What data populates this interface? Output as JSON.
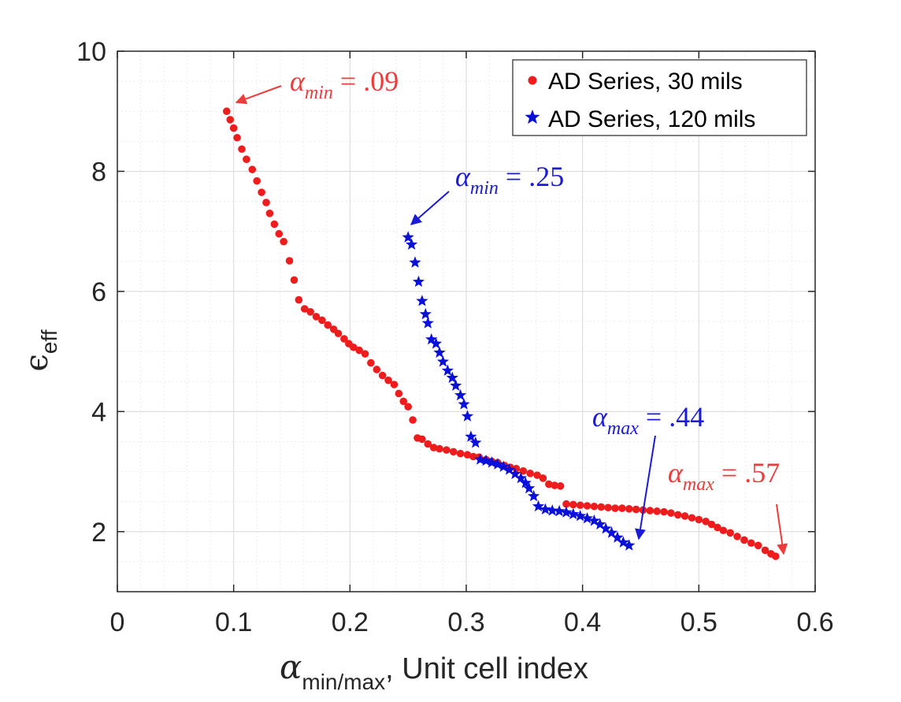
{
  "chart_data": {
    "type": "scatter",
    "title": "",
    "xlabel_symbol": "α",
    "xlabel_sub": "min/max",
    "xlabel_rest": ", Unit cell index",
    "ylabel_symbol": "ϵ",
    "ylabel_sub": "eff",
    "xlim": [
      0,
      0.6
    ],
    "ylim": [
      1,
      10
    ],
    "xticks": [
      0,
      0.1,
      0.2,
      0.3,
      0.4,
      0.5,
      0.6
    ],
    "xtick_labels": [
      "0",
      "0.1",
      "0.2",
      "0.3",
      "0.4",
      "0.5",
      "0.6"
    ],
    "yticks": [
      2,
      4,
      6,
      8,
      10
    ],
    "ytick_labels": [
      "2",
      "4",
      "6",
      "8",
      "10"
    ],
    "grid": true,
    "minor_grid": true,
    "legend_position": "top-right",
    "colors": {
      "red": "#ee1c1c",
      "blue": "#0a10d8",
      "annot_red": "#ee3c3c",
      "annot_blue": "#1a1ad8"
    },
    "series": [
      {
        "name": "AD Series, 30 mils",
        "marker": "circle",
        "color": "#ee1c1c",
        "points": [
          [
            0.094,
            9.0
          ],
          [
            0.097,
            8.86
          ],
          [
            0.1,
            8.72
          ],
          [
            0.103,
            8.56
          ],
          [
            0.107,
            8.37
          ],
          [
            0.111,
            8.2
          ],
          [
            0.116,
            8.03
          ],
          [
            0.12,
            7.84
          ],
          [
            0.124,
            7.65
          ],
          [
            0.128,
            7.48
          ],
          [
            0.131,
            7.3
          ],
          [
            0.135,
            7.12
          ],
          [
            0.139,
            6.96
          ],
          [
            0.143,
            6.83
          ],
          [
            0.148,
            6.51
          ],
          [
            0.152,
            6.19
          ],
          [
            0.156,
            5.86
          ],
          [
            0.161,
            5.71
          ],
          [
            0.166,
            5.66
          ],
          [
            0.171,
            5.58
          ],
          [
            0.176,
            5.52
          ],
          [
            0.181,
            5.44
          ],
          [
            0.186,
            5.37
          ],
          [
            0.19,
            5.3
          ],
          [
            0.195,
            5.21
          ],
          [
            0.199,
            5.13
          ],
          [
            0.203,
            5.07
          ],
          [
            0.208,
            5.02
          ],
          [
            0.213,
            4.96
          ],
          [
            0.218,
            4.81
          ],
          [
            0.223,
            4.7
          ],
          [
            0.228,
            4.6
          ],
          [
            0.233,
            4.52
          ],
          [
            0.238,
            4.45
          ],
          [
            0.242,
            4.3
          ],
          [
            0.246,
            4.17
          ],
          [
            0.25,
            4.08
          ],
          [
            0.254,
            3.86
          ],
          [
            0.258,
            3.56
          ],
          [
            0.262,
            3.54
          ],
          [
            0.267,
            3.46
          ],
          [
            0.272,
            3.4
          ],
          [
            0.277,
            3.38
          ],
          [
            0.283,
            3.36
          ],
          [
            0.289,
            3.33
          ],
          [
            0.295,
            3.3
          ],
          [
            0.301,
            3.28
          ],
          [
            0.306,
            3.25
          ],
          [
            0.311,
            3.24
          ],
          [
            0.317,
            3.2
          ],
          [
            0.322,
            3.17
          ],
          [
            0.327,
            3.15
          ],
          [
            0.333,
            3.1
          ],
          [
            0.338,
            3.07
          ],
          [
            0.343,
            3.05
          ],
          [
            0.349,
            3.01
          ],
          [
            0.355,
            2.97
          ],
          [
            0.361,
            2.94
          ],
          [
            0.366,
            2.89
          ],
          [
            0.371,
            2.79
          ],
          [
            0.376,
            2.77
          ],
          [
            0.381,
            2.76
          ],
          [
            0.386,
            2.46
          ],
          [
            0.392,
            2.45
          ],
          [
            0.398,
            2.44
          ],
          [
            0.404,
            2.43
          ],
          [
            0.41,
            2.42
          ],
          [
            0.416,
            2.41
          ],
          [
            0.422,
            2.4
          ],
          [
            0.428,
            2.39
          ],
          [
            0.434,
            2.39
          ],
          [
            0.44,
            2.38
          ],
          [
            0.446,
            2.37
          ],
          [
            0.452,
            2.36
          ],
          [
            0.458,
            2.35
          ],
          [
            0.464,
            2.34
          ],
          [
            0.47,
            2.33
          ],
          [
            0.476,
            2.31
          ],
          [
            0.482,
            2.28
          ],
          [
            0.488,
            2.26
          ],
          [
            0.494,
            2.23
          ],
          [
            0.5,
            2.2
          ],
          [
            0.506,
            2.17
          ],
          [
            0.511,
            2.12
          ],
          [
            0.516,
            2.07
          ],
          [
            0.521,
            2.02
          ],
          [
            0.527,
            1.98
          ],
          [
            0.533,
            1.92
          ],
          [
            0.539,
            1.86
          ],
          [
            0.545,
            1.81
          ],
          [
            0.551,
            1.77
          ],
          [
            0.557,
            1.69
          ],
          [
            0.562,
            1.63
          ],
          [
            0.566,
            1.59
          ]
        ]
      },
      {
        "name": "AD Series, 120 mils",
        "marker": "star",
        "color": "#0a10d8",
        "points": [
          [
            0.25,
            6.9
          ],
          [
            0.253,
            6.78
          ],
          [
            0.256,
            6.48
          ],
          [
            0.259,
            6.16
          ],
          [
            0.262,
            5.84
          ],
          [
            0.265,
            5.62
          ],
          [
            0.267,
            5.47
          ],
          [
            0.27,
            5.2
          ],
          [
            0.274,
            5.13
          ],
          [
            0.277,
            4.98
          ],
          [
            0.28,
            4.83
          ],
          [
            0.284,
            4.68
          ],
          [
            0.288,
            4.56
          ],
          [
            0.291,
            4.43
          ],
          [
            0.295,
            4.27
          ],
          [
            0.298,
            4.12
          ],
          [
            0.301,
            3.92
          ],
          [
            0.304,
            3.58
          ],
          [
            0.308,
            3.48
          ],
          [
            0.312,
            3.2
          ],
          [
            0.317,
            3.18
          ],
          [
            0.322,
            3.15
          ],
          [
            0.327,
            3.12
          ],
          [
            0.332,
            3.08
          ],
          [
            0.337,
            3.03
          ],
          [
            0.342,
            2.96
          ],
          [
            0.347,
            2.89
          ],
          [
            0.351,
            2.81
          ],
          [
            0.354,
            2.72
          ],
          [
            0.358,
            2.59
          ],
          [
            0.362,
            2.42
          ],
          [
            0.368,
            2.37
          ],
          [
            0.374,
            2.35
          ],
          [
            0.38,
            2.34
          ],
          [
            0.386,
            2.32
          ],
          [
            0.392,
            2.29
          ],
          [
            0.398,
            2.26
          ],
          [
            0.404,
            2.22
          ],
          [
            0.41,
            2.18
          ],
          [
            0.415,
            2.12
          ],
          [
            0.42,
            2.05
          ],
          [
            0.425,
            1.98
          ],
          [
            0.43,
            1.9
          ],
          [
            0.435,
            1.82
          ],
          [
            0.44,
            1.77
          ]
        ]
      }
    ],
    "annotations": [
      {
        "id": "red-min",
        "symbol": "α",
        "sub": "min",
        "value": " = .09",
        "color": "#ee3c3c",
        "target": [
          0.099,
          8.96
        ]
      },
      {
        "id": "blue-min",
        "symbol": "α",
        "sub": "min",
        "value": " = .25",
        "color": "#1a1ad8",
        "target": [
          0.252,
          7.12
        ]
      },
      {
        "id": "blue-max",
        "symbol": "α",
        "sub": "max",
        "value": " = .44",
        "color": "#1a1ad8",
        "target": [
          0.45,
          1.83
        ]
      },
      {
        "id": "red-max",
        "symbol": "α",
        "sub": "max",
        "value": " = .57",
        "color": "#ee3c3c",
        "target": [
          0.575,
          1.6
        ]
      }
    ]
  }
}
